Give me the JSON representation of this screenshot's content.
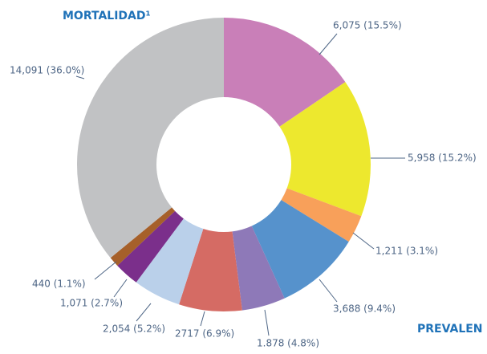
{
  "chart_data": {
    "type": "donut",
    "title": "MORTALIDAD¹",
    "annotation": "PREVALEN",
    "categories": [
      null,
      null,
      null,
      null,
      null,
      null,
      null,
      null,
      null,
      null
    ],
    "values": [
      6075,
      5958,
      1211,
      3688,
      1878,
      2717,
      2054,
      1071,
      440,
      14091
    ],
    "value_labels": [
      "6,075 (15.5%)",
      "5,958 (15.2%)",
      "1,211 (3.1%)",
      "3,688 (9.4%)",
      "1.878 (4.8%)",
      "2717 (6.9%)",
      "2,054 (5.2%)",
      "1,071 (2.7%)",
      "440 (1.1%)",
      "14,091 (36.0%)"
    ],
    "colors": [
      "#c97fb8",
      "#ede82e",
      "#f8a05a",
      "#5692cc",
      "#8e79b8",
      "#d56b64",
      "#bad0ea",
      "#7b2f8b",
      "#a6602a",
      "#c1c2c4"
    ]
  }
}
